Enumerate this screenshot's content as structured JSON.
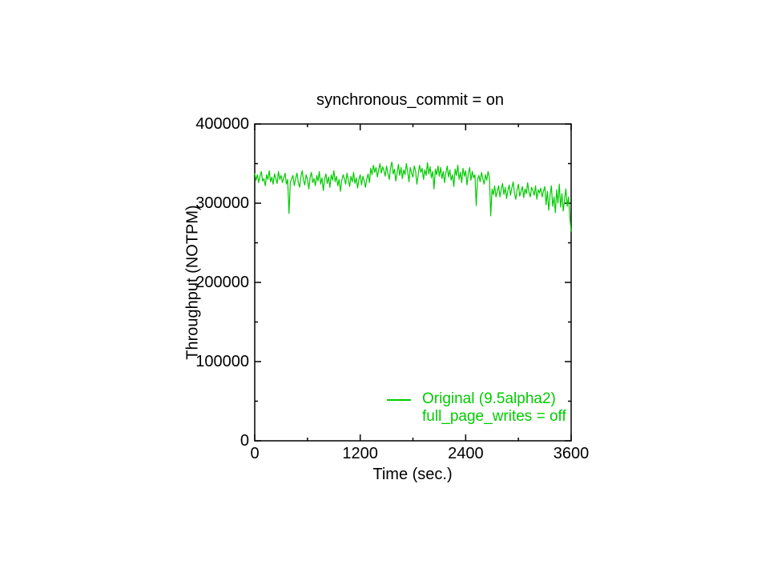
{
  "page": {
    "background": "#ffffff",
    "text_color": "#000000"
  },
  "chart_data": {
    "type": "line",
    "title": "synchronous_commit = on",
    "xlabel": "Time (sec.)",
    "ylabel": "Throughput (NOTPM)",
    "xlim": [
      0,
      3600
    ],
    "ylim": [
      0,
      400000
    ],
    "x_major_ticks": [
      0,
      1200,
      2400,
      3600
    ],
    "x_minor_step": 600,
    "y_major_ticks": [
      0,
      100000,
      200000,
      300000,
      400000
    ],
    "y_minor_step": 50000,
    "grid": false,
    "axis_color": "#000000",
    "legend": {
      "position": "inside-bottom-right",
      "entries": [
        {
          "label": "Original (9.5alpha2)",
          "label2": "full_page_writes = off",
          "color": "#00cc00"
        }
      ]
    },
    "series": [
      {
        "name": "Original (9.5alpha2) full_page_writes = off",
        "color": "#00cc00",
        "x_start": 0,
        "x_step": 15,
        "values": [
          338000,
          329000,
          336000,
          326000,
          334000,
          340000,
          328000,
          331000,
          322000,
          336000,
          330000,
          341000,
          327000,
          333000,
          324000,
          337000,
          331000,
          325000,
          340000,
          330000,
          335000,
          326000,
          332000,
          338000,
          324000,
          330000,
          287000,
          326000,
          331000,
          335000,
          322000,
          331000,
          338000,
          327000,
          320000,
          333000,
          341000,
          329000,
          323000,
          336000,
          330000,
          318000,
          332000,
          339000,
          326000,
          331000,
          322000,
          335000,
          328000,
          340000,
          324000,
          332000,
          316000,
          330000,
          337000,
          325000,
          333000,
          320000,
          336000,
          329000,
          341000,
          327000,
          334000,
          322000,
          330000,
          315000,
          328000,
          336000,
          331000,
          324000,
          338000,
          329000,
          321000,
          334000,
          327000,
          339000,
          325000,
          332000,
          319000,
          330000,
          336000,
          323000,
          334000,
          328000,
          320000,
          331000,
          337000,
          326000,
          344000,
          336000,
          348000,
          339000,
          345000,
          333000,
          342000,
          350000,
          338000,
          346000,
          341000,
          334000,
          347000,
          338000,
          330000,
          344000,
          352000,
          337000,
          343000,
          328000,
          339000,
          349000,
          335000,
          345000,
          331000,
          342000,
          336000,
          350000,
          340000,
          327000,
          345000,
          338000,
          333000,
          347000,
          341000,
          324000,
          336000,
          348000,
          339000,
          344000,
          330000,
          342000,
          335000,
          351000,
          337000,
          346000,
          332000,
          340000,
          318000,
          343000,
          336000,
          347000,
          334000,
          345000,
          331000,
          340000,
          326000,
          338000,
          347000,
          333000,
          342000,
          329000,
          336000,
          321000,
          343000,
          335000,
          348000,
          330000,
          339000,
          326000,
          344000,
          334000,
          341000,
          323000,
          337000,
          345000,
          329000,
          340000,
          332000,
          336000,
          297000,
          330000,
          335000,
          327000,
          339000,
          331000,
          324000,
          336000,
          329000,
          340000,
          332000,
          284000,
          318000,
          311000,
          322000,
          308000,
          315000,
          322000,
          308000,
          318000,
          325000,
          311000,
          320000,
          306000,
          316000,
          323000,
          310000,
          319000,
          327000,
          313000,
          305000,
          317000,
          324000,
          309000,
          315000,
          321000,
          307000,
          318000,
          312000,
          326000,
          314000,
          308000,
          320000,
          316000,
          310000,
          322000,
          305000,
          317000,
          313000,
          319000,
          308000,
          315000,
          321000,
          298000,
          315000,
          291000,
          310000,
          322000,
          296000,
          308000,
          288000,
          317000,
          300000,
          324000,
          295000,
          312000,
          290000,
          305000,
          318000,
          296000,
          308000,
          282000,
          264000
        ]
      }
    ]
  }
}
